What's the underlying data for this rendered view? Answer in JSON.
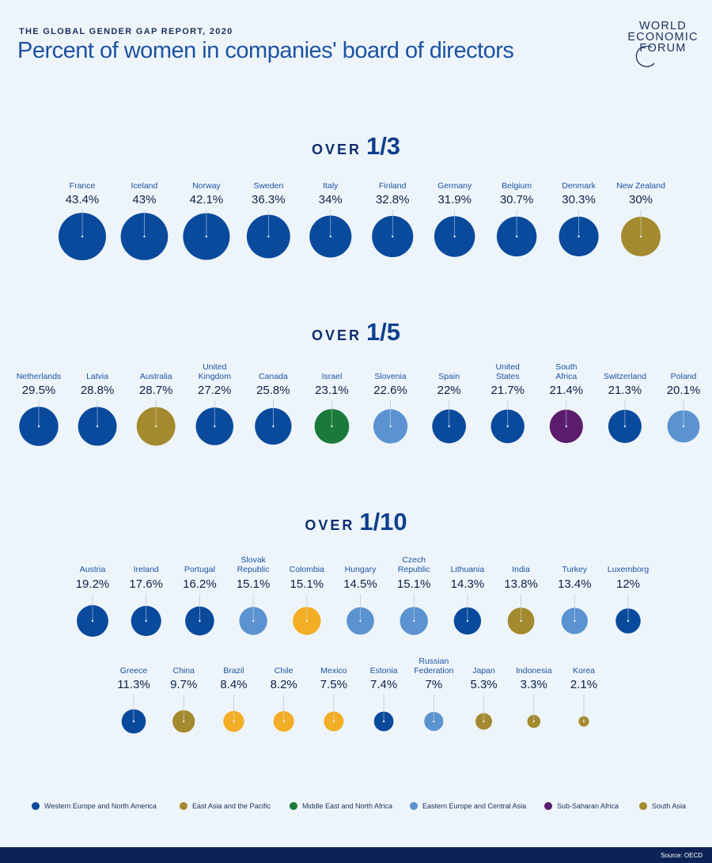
{
  "header": {
    "kicker": "THE GLOBAL GENDER GAP REPORT, 2020",
    "title": "Percent of women in companies' board of directors"
  },
  "logo": {
    "line1": "WORLD",
    "line2": "ECONOMIC",
    "line3": "FORUM"
  },
  "colors": {
    "background": "#eef5fa",
    "title": "#1c52a3",
    "western": "#0a4a9c",
    "eastasia": "#a38a2f",
    "mena": "#1a7a3a",
    "eastern": "#5b93d0",
    "ssa": "#5c1c6e",
    "southasia": "#a38a2f",
    "latam": "#f3ae25"
  },
  "bands": [
    {
      "lead": "OVER",
      "fraction": "1/3"
    },
    {
      "lead": "OVER",
      "fraction": "1/5"
    },
    {
      "lead": "OVER",
      "fraction": "1/10"
    }
  ],
  "legend": [
    {
      "label": "Western Europe and North America",
      "color": "#0a4a9c"
    },
    {
      "label": "East Asia and the Pacific",
      "color": "#a38a2f"
    },
    {
      "label": "Middle East and North Africa",
      "color": "#1a7a3a"
    },
    {
      "label": "Eastern Europe and Central Asia",
      "color": "#5b93d0"
    },
    {
      "label": "Sub-Saharan Africa",
      "color": "#5c1c6e"
    },
    {
      "label": "South Asia",
      "color": "#a38a2f"
    }
  ],
  "footer": {
    "source": "Source: OECD"
  },
  "chart_data": {
    "type": "bubble",
    "title": "Percent of women in companies' board of directors",
    "unit": "%",
    "rows": [
      {
        "band": 0,
        "items": [
          {
            "country": "France",
            "label_lines": [
              "France"
            ],
            "value": 43.4,
            "value_label": "43.4%",
            "region": "western"
          },
          {
            "country": "Iceland",
            "label_lines": [
              "Iceland"
            ],
            "value": 43,
            "value_label": "43%",
            "region": "western"
          },
          {
            "country": "Norway",
            "label_lines": [
              "Norway"
            ],
            "value": 42.1,
            "value_label": "42.1%",
            "region": "western"
          },
          {
            "country": "Sweden",
            "label_lines": [
              "Sweden"
            ],
            "value": 36.3,
            "value_label": "36.3%",
            "region": "western"
          },
          {
            "country": "Italy",
            "label_lines": [
              "Italy"
            ],
            "value": 34,
            "value_label": "34%",
            "region": "western"
          },
          {
            "country": "Finland",
            "label_lines": [
              "Finland"
            ],
            "value": 32.8,
            "value_label": "32.8%",
            "region": "western"
          },
          {
            "country": "Germany",
            "label_lines": [
              "Germany"
            ],
            "value": 31.9,
            "value_label": "31.9%",
            "region": "western"
          },
          {
            "country": "Belgium",
            "label_lines": [
              "Belgium"
            ],
            "value": 30.7,
            "value_label": "30.7%",
            "region": "western"
          },
          {
            "country": "Denmark",
            "label_lines": [
              "Denmark"
            ],
            "value": 30.3,
            "value_label": "30.3%",
            "region": "western"
          },
          {
            "country": "New Zealand",
            "label_lines": [
              "New Zealand"
            ],
            "value": 30,
            "value_label": "30%",
            "region": "eastasia"
          }
        ]
      },
      {
        "band": 1,
        "items": [
          {
            "country": "Netherlands",
            "label_lines": [
              "Netherlands"
            ],
            "value": 29.5,
            "value_label": "29.5%",
            "region": "western"
          },
          {
            "country": "Latvia",
            "label_lines": [
              "Latvia"
            ],
            "value": 28.8,
            "value_label": "28.8%",
            "region": "western"
          },
          {
            "country": "Australia",
            "label_lines": [
              "Australia"
            ],
            "value": 28.7,
            "value_label": "28.7%",
            "region": "eastasia"
          },
          {
            "country": "United Kingdom",
            "label_lines": [
              "United",
              "Kingdom"
            ],
            "value": 27.2,
            "value_label": "27.2%",
            "region": "western"
          },
          {
            "country": "Canada",
            "label_lines": [
              "Canada"
            ],
            "value": 25.8,
            "value_label": "25.8%",
            "region": "western"
          },
          {
            "country": "Israel",
            "label_lines": [
              "Israel"
            ],
            "value": 23.1,
            "value_label": "23.1%",
            "region": "mena"
          },
          {
            "country": "Slovenia",
            "label_lines": [
              "Slovenia"
            ],
            "value": 22.6,
            "value_label": "22.6%",
            "region": "eastern"
          },
          {
            "country": "Spain",
            "label_lines": [
              "Spain"
            ],
            "value": 22,
            "value_label": "22%",
            "region": "western"
          },
          {
            "country": "United States",
            "label_lines": [
              "United",
              "States"
            ],
            "value": 21.7,
            "value_label": "21.7%",
            "region": "western"
          },
          {
            "country": "South Africa",
            "label_lines": [
              "South",
              "Africa"
            ],
            "value": 21.4,
            "value_label": "21.4%",
            "region": "ssa"
          },
          {
            "country": "Switzerland",
            "label_lines": [
              "Switzerland"
            ],
            "value": 21.3,
            "value_label": "21.3%",
            "region": "western"
          },
          {
            "country": "Poland",
            "label_lines": [
              "Poland"
            ],
            "value": 20.1,
            "value_label": "20.1%",
            "region": "eastern"
          }
        ]
      },
      {
        "band": 2,
        "items": [
          {
            "country": "Austria",
            "label_lines": [
              "Austria"
            ],
            "value": 19.2,
            "value_label": "19.2%",
            "region": "western"
          },
          {
            "country": "Ireland",
            "label_lines": [
              "Ireland"
            ],
            "value": 17.6,
            "value_label": "17.6%",
            "region": "western"
          },
          {
            "country": "Portugal",
            "label_lines": [
              "Portugal"
            ],
            "value": 16.2,
            "value_label": "16.2%",
            "region": "western"
          },
          {
            "country": "Slovak Republic",
            "label_lines": [
              "Slovak",
              "Republic"
            ],
            "value": 15.1,
            "value_label": "15.1%",
            "region": "eastern"
          },
          {
            "country": "Colombia",
            "label_lines": [
              "Colombia"
            ],
            "value": 15.1,
            "value_label": "15.1%",
            "region": "latam"
          },
          {
            "country": "Hungary",
            "label_lines": [
              "Hungary"
            ],
            "value": 14.5,
            "value_label": "14.5%",
            "region": "eastern"
          },
          {
            "country": "Czech Republic",
            "label_lines": [
              "Czech",
              "Republic"
            ],
            "value": 15.1,
            "value_label": "15.1%",
            "region": "eastern"
          },
          {
            "country": "Lithuania",
            "label_lines": [
              "Lithuania"
            ],
            "value": 14.3,
            "value_label": "14.3%",
            "region": "western"
          },
          {
            "country": "India",
            "label_lines": [
              "India"
            ],
            "value": 13.8,
            "value_label": "13.8%",
            "region": "southasia"
          },
          {
            "country": "Turkey",
            "label_lines": [
              "Turkey"
            ],
            "value": 13.4,
            "value_label": "13.4%",
            "region": "eastern"
          },
          {
            "country": "Luxemborg",
            "label_lines": [
              "Luxemborg"
            ],
            "value": 12,
            "value_label": "12%",
            "region": "western"
          }
        ]
      },
      {
        "band": 2,
        "items": [
          {
            "country": "Greece",
            "label_lines": [
              "Greece"
            ],
            "value": 11.3,
            "value_label": "11.3%",
            "region": "western"
          },
          {
            "country": "China",
            "label_lines": [
              "China"
            ],
            "value": 9.7,
            "value_label": "9.7%",
            "region": "eastasia"
          },
          {
            "country": "Brazil",
            "label_lines": [
              "Brazil"
            ],
            "value": 8.4,
            "value_label": "8.4%",
            "region": "latam"
          },
          {
            "country": "Chile",
            "label_lines": [
              "Chile"
            ],
            "value": 8.2,
            "value_label": "8.2%",
            "region": "latam"
          },
          {
            "country": "Mexico",
            "label_lines": [
              "Mexico"
            ],
            "value": 7.5,
            "value_label": "7.5%",
            "region": "latam"
          },
          {
            "country": "Estonia",
            "label_lines": [
              "Estonia"
            ],
            "value": 7.4,
            "value_label": "7.4%",
            "region": "western"
          },
          {
            "country": "Russian Federation",
            "label_lines": [
              "Russian",
              "Federation"
            ],
            "value": 7,
            "value_label": "7%",
            "region": "eastern"
          },
          {
            "country": "Japan",
            "label_lines": [
              "Japan"
            ],
            "value": 5.3,
            "value_label": "5.3%",
            "region": "eastasia"
          },
          {
            "country": "Indonesia",
            "label_lines": [
              "Indonesia"
            ],
            "value": 3.3,
            "value_label": "3.3%",
            "region": "eastasia"
          },
          {
            "country": "Korea",
            "label_lines": [
              "Korea"
            ],
            "value": 2.1,
            "value_label": "2.1%",
            "region": "eastasia"
          }
        ]
      }
    ]
  }
}
